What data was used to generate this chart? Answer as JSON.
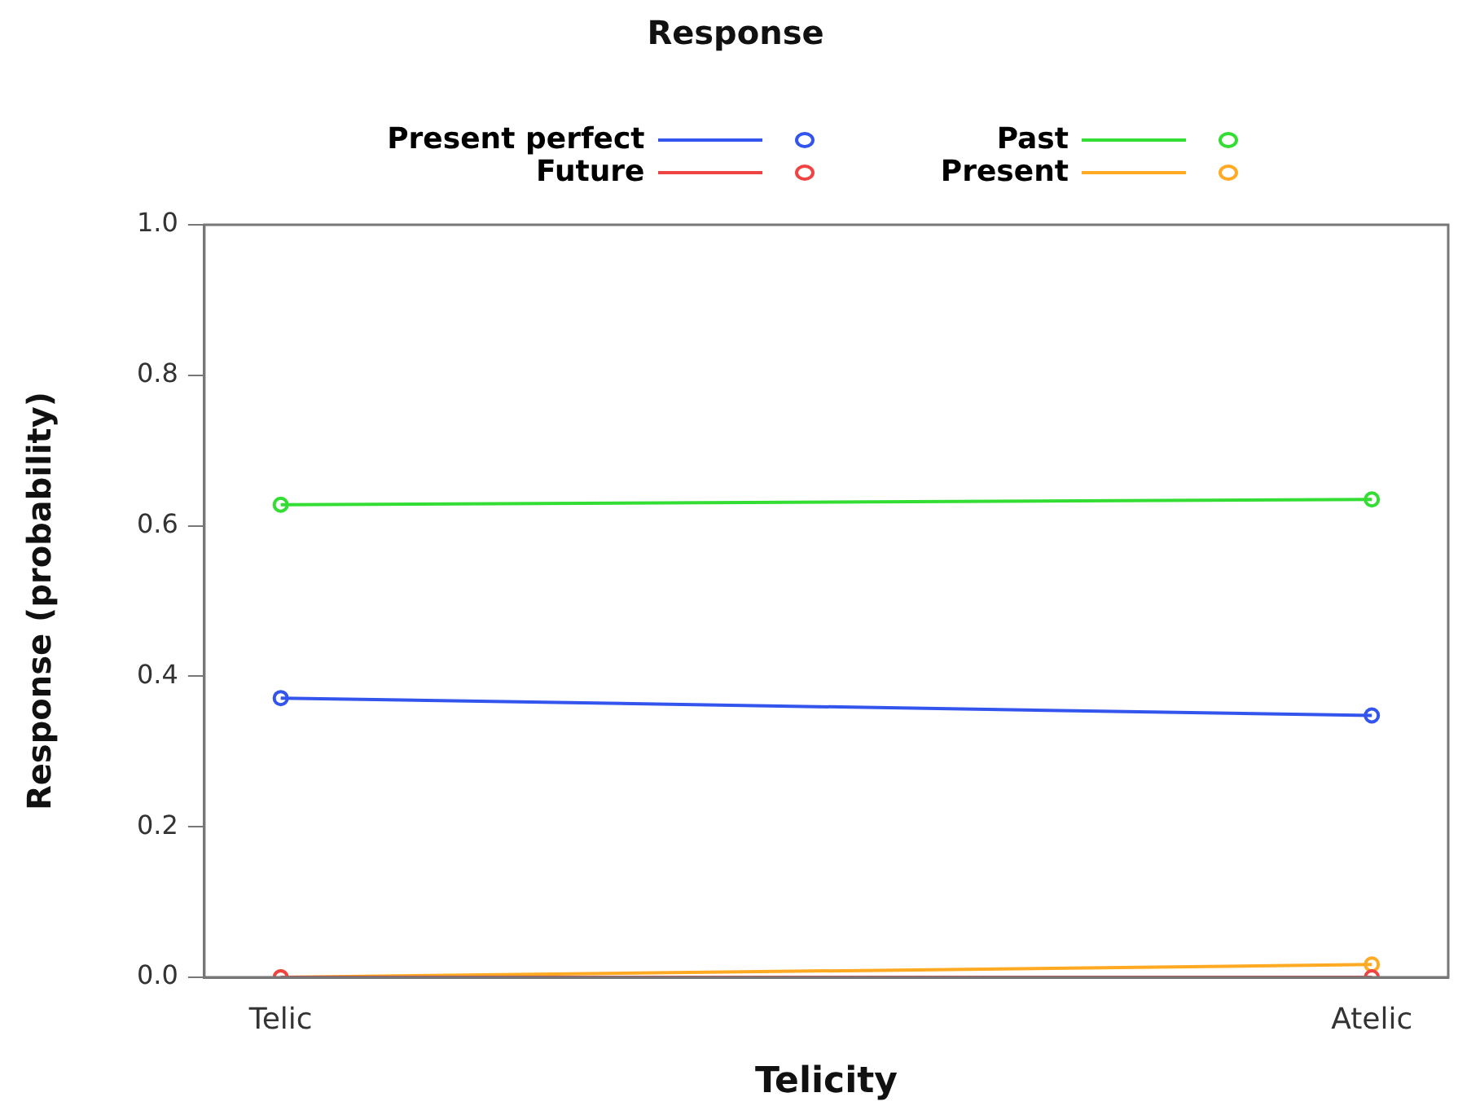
{
  "chart_data": {
    "type": "line",
    "title": "Response",
    "xlabel": "Telicity",
    "ylabel": "Response (probability)",
    "categories": [
      "Telic",
      "Atelic"
    ],
    "series": [
      {
        "name": "Present perfect",
        "color": "#3355ee",
        "values": [
          0.371,
          0.348
        ]
      },
      {
        "name": "Future",
        "color": "#ee4444",
        "values": [
          0.0,
          0.0
        ]
      },
      {
        "name": "Past",
        "color": "#33dd33",
        "values": [
          0.628,
          0.635
        ]
      },
      {
        "name": "Present",
        "color": "#ffaa22",
        "values": [
          0.0,
          0.017
        ]
      }
    ],
    "ylim": [
      0,
      1
    ],
    "yticks": [
      {
        "value": 0,
        "label": "0.0"
      },
      0.2,
      0.4,
      0.6,
      0.8,
      {
        "value": 1,
        "label": "1.0"
      }
    ],
    "marker": "circle",
    "line_style": "solid",
    "grid": false,
    "legend": "top"
  }
}
